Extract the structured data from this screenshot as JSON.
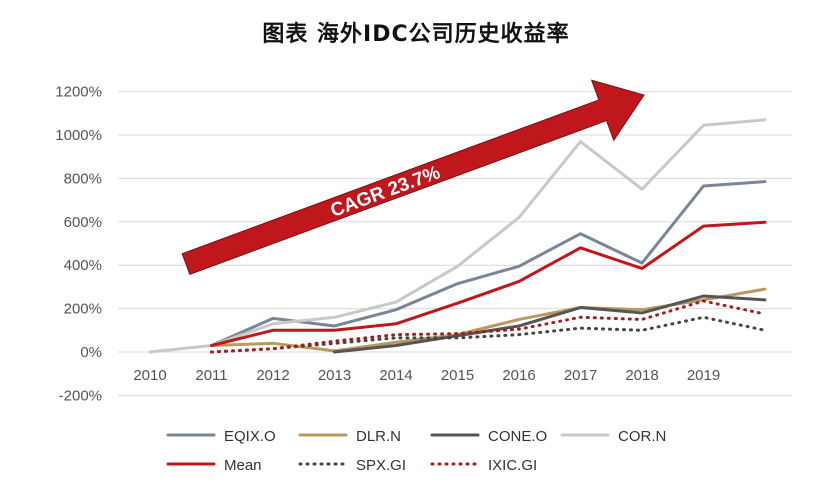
{
  "chart_data": {
    "type": "line",
    "title": "图表 海外IDC公司历史收益率",
    "x": [
      2010,
      2011,
      2012,
      2013,
      2014,
      2015,
      2016,
      2017,
      2018,
      2019,
      2020
    ],
    "x_tick_labels": [
      "2010",
      "2011",
      "2012",
      "2013",
      "2014",
      "2015",
      "2016",
      "2017",
      "2018",
      "2019"
    ],
    "y_tick_labels": [
      "1200%",
      "1000%",
      "800%",
      "600%",
      "400%",
      "200%",
      "0%",
      "-200%"
    ],
    "y_ticks": [
      1200,
      1000,
      800,
      600,
      400,
      200,
      0,
      -200
    ],
    "ylim": [
      -200,
      1200
    ],
    "grid": true,
    "legend_position": "bottom",
    "annotation": {
      "text": "CAGR 23.7%",
      "arrow_color": "#c0171c"
    },
    "series": [
      {
        "name": "EQIX.O",
        "color": "#7b8595",
        "style": "solid",
        "width": 3,
        "values": [
          null,
          30,
          155,
          120,
          195,
          315,
          395,
          545,
          410,
          765,
          785
        ]
      },
      {
        "name": "DLR.N",
        "color": "#b89a5e",
        "style": "solid",
        "width": 3,
        "values": [
          null,
          30,
          40,
          5,
          45,
          80,
          150,
          205,
          195,
          240,
          290
        ]
      },
      {
        "name": "CONE.O",
        "color": "#555555",
        "style": "solid",
        "width": 3,
        "values": [
          null,
          null,
          null,
          0,
          30,
          75,
          120,
          205,
          180,
          258,
          240
        ]
      },
      {
        "name": "COR.N",
        "color": "#c8c8c8",
        "style": "solid",
        "width": 3,
        "values": [
          0,
          30,
          130,
          160,
          230,
          395,
          620,
          970,
          750,
          1045,
          1070
        ]
      },
      {
        "name": "Mean",
        "color": "#c0171c",
        "style": "solid",
        "width": 3,
        "values": [
          null,
          30,
          100,
          100,
          130,
          225,
          325,
          480,
          385,
          580,
          598
        ]
      },
      {
        "name": "SPX.GI",
        "color": "#444444",
        "style": "dotted",
        "width": 3,
        "values": [
          null,
          0,
          15,
          40,
          65,
          65,
          80,
          110,
          100,
          160,
          100
        ]
      },
      {
        "name": "IXIC.GI",
        "color": "#a31d1f",
        "style": "dotted",
        "width": 3,
        "values": [
          null,
          0,
          15,
          50,
          80,
          85,
          105,
          160,
          150,
          235,
          175
        ]
      }
    ]
  }
}
